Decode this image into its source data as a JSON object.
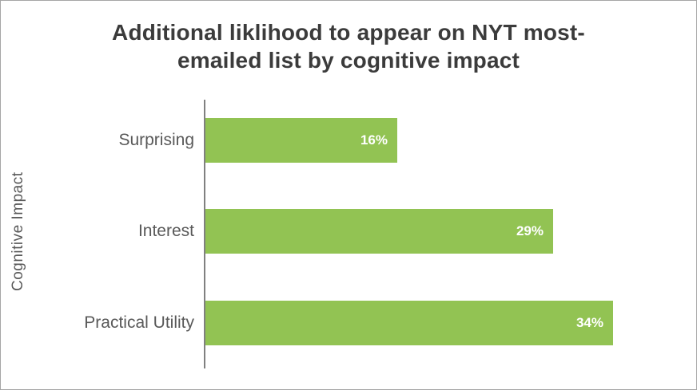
{
  "chart_data": {
    "type": "bar",
    "orientation": "horizontal",
    "title": "Additional liklihood to appear on NYT most-emailed list by cognitive impact",
    "ylabel": "Cognitive Impact",
    "xlabel": "",
    "categories": [
      "Surprising",
      "Interest",
      "Practical Utility"
    ],
    "values": [
      16,
      29,
      34
    ],
    "value_labels": [
      "16%",
      "29%",
      "34%"
    ],
    "xlim": [
      0,
      40
    ],
    "grid": false,
    "legend": false,
    "bar_color": "#92c353",
    "value_label_color": "#ffffff",
    "axis_line_color": "#808080",
    "title_color": "#3b3b3b",
    "category_label_color": "#595959"
  }
}
